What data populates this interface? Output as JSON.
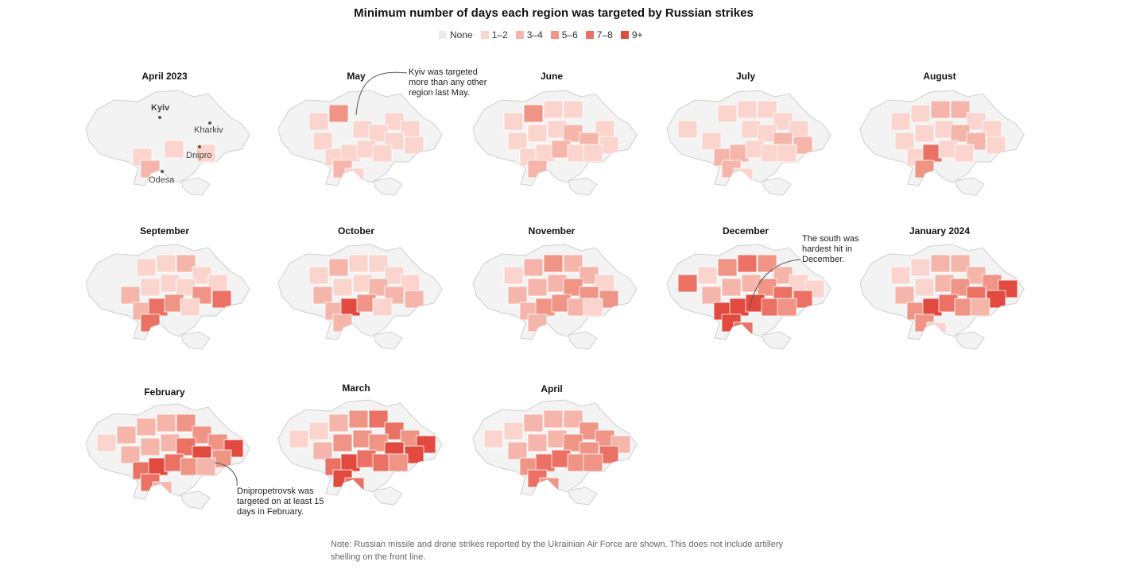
{
  "title": "Minimum number of days each region was targeted by Russian strikes",
  "legend": [
    {
      "label": "None",
      "color": "#ebebeb"
    },
    {
      "label": "1–2",
      "color": "#fad4cd"
    },
    {
      "label": "3–4",
      "color": "#f5b5aa"
    },
    {
      "label": "5–6",
      "color": "#f09486"
    },
    {
      "label": "7–8",
      "color": "#eb7165"
    },
    {
      "label": "9+",
      "color": "#e24a40"
    }
  ],
  "months": [
    {
      "label": "April 2023"
    },
    {
      "label": "May"
    },
    {
      "label": "June"
    },
    {
      "label": "July"
    },
    {
      "label": "August"
    },
    {
      "label": "September"
    },
    {
      "label": "October"
    },
    {
      "label": "November"
    },
    {
      "label": "December"
    },
    {
      "label": "January 2024"
    },
    {
      "label": "February"
    },
    {
      "label": "March"
    },
    {
      "label": "April"
    }
  ],
  "city_labels": {
    "kyiv": "Kyiv",
    "kharkiv": "Kharkiv",
    "dnipro": "Dnipro",
    "odesa": "Odesa"
  },
  "annotations": {
    "may": "Kyiv was targeted more than any other region last May.",
    "december": "The south was hardest hit in December.",
    "february": "Dnipropetrovsk was targeted on at least 15 days in February."
  },
  "note": "Note: Russian missile and drone strikes reported by the Ukrainian Air Force are shown. This does not include artillery shelling on the front line."
}
